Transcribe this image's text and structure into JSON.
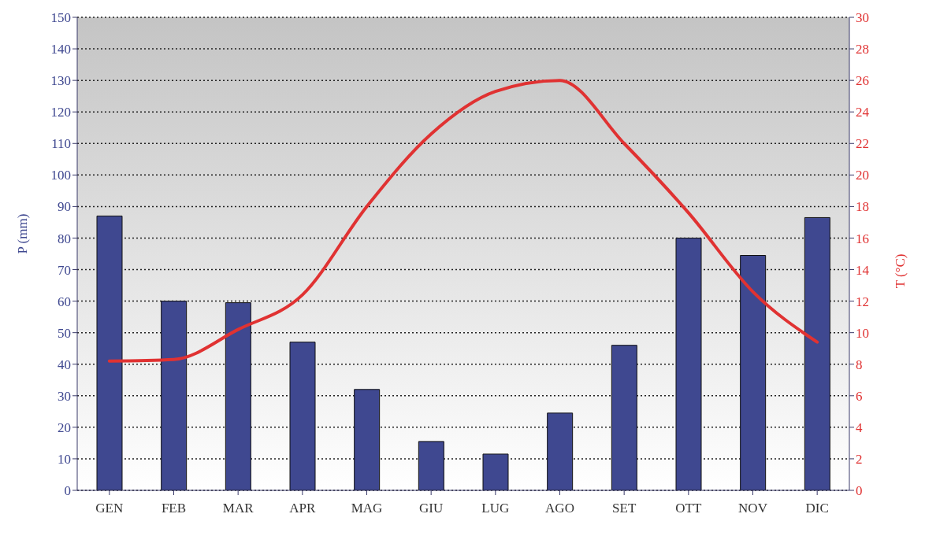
{
  "chart_data": {
    "type": "bar",
    "ylabel": "P (mm)",
    "y2label": "T (°C)",
    "categories": [
      "GEN",
      "FEB",
      "MAR",
      "APR",
      "MAG",
      "GIU",
      "LUG",
      "AGO",
      "SET",
      "OTT",
      "NOV",
      "DIC"
    ],
    "series": [
      {
        "color": "#3f4890",
        "values": [
          87,
          60,
          59.5,
          47,
          32,
          15.5,
          11.5,
          24.5,
          46,
          80,
          74.5,
          86.5
        ]
      },
      {
        "type": "line",
        "axis": "y2",
        "color": "#e03232",
        "values": [
          8.2,
          8.3,
          10.2,
          12.4,
          18,
          22.6,
          25.3,
          26,
          22,
          17.6,
          12.6,
          9.4
        ]
      }
    ],
    "ylim": [
      0,
      150
    ],
    "yticks": [
      0,
      10,
      20,
      30,
      40,
      50,
      60,
      70,
      80,
      90,
      100,
      110,
      120,
      130,
      140,
      150
    ],
    "y2lim": [
      0,
      30
    ],
    "y2ticks": [
      0,
      2,
      4,
      6,
      8,
      10,
      12,
      14,
      16,
      18,
      20,
      22,
      24,
      26,
      28,
      30
    ],
    "grid": "y",
    "legend": false,
    "marker": "none",
    "line_style": "solid"
  }
}
